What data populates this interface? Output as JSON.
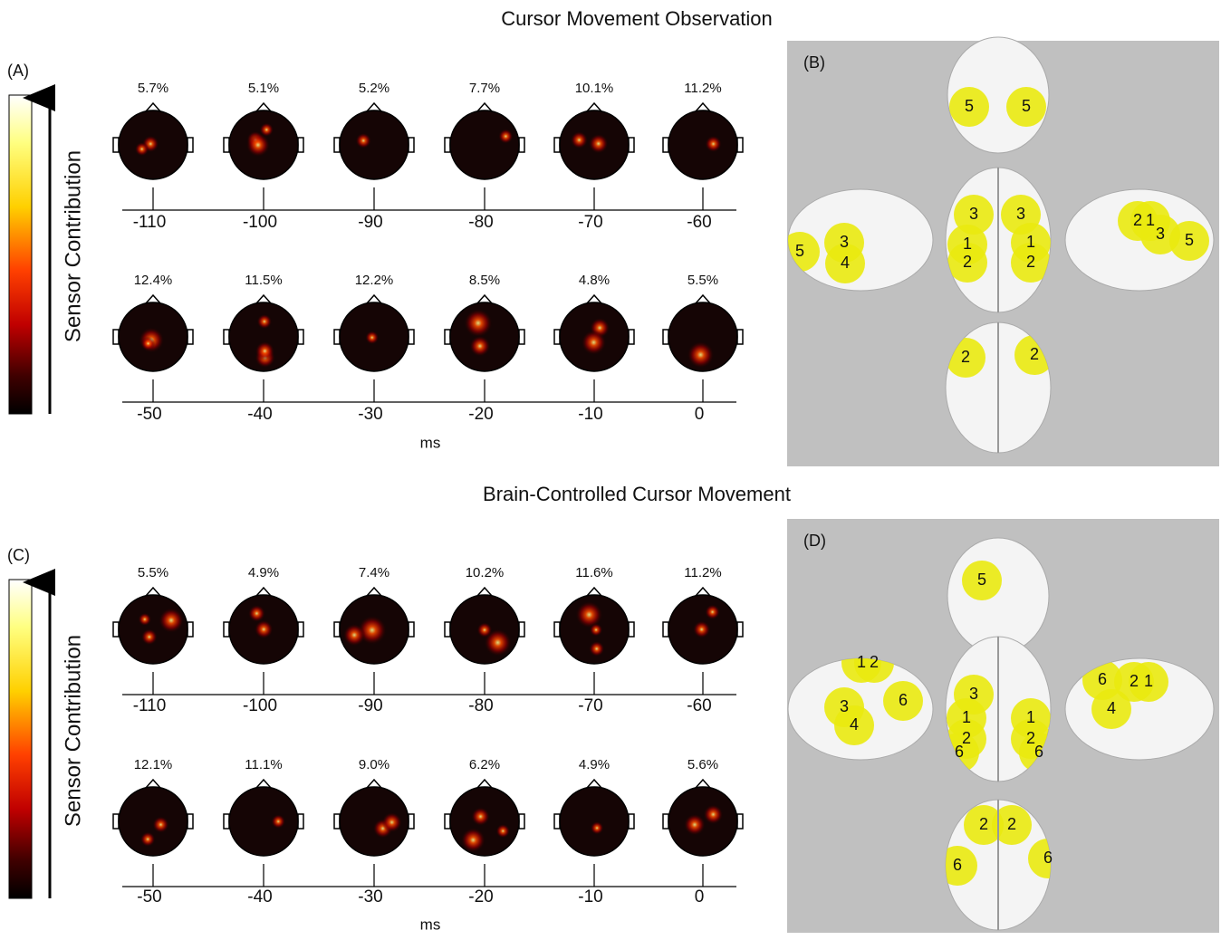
{
  "sections": [
    {
      "title": "Cursor Movement Observation",
      "topo_panel": {
        "label": "(A)",
        "colorbar_label": "Sensor Contribution",
        "axis_label": "ms",
        "rows": [
          {
            "percents": [
              "5.7%",
              "5.1%",
              "5.2%",
              "7.7%",
              "10.1%",
              "11.2%"
            ],
            "times": [
              "-110",
              "-100",
              "-90",
              "-80",
              "-70",
              "-60"
            ]
          },
          {
            "percents": [
              "12.4%",
              "11.5%",
              "12.2%",
              "8.5%",
              "4.8%",
              "5.5%"
            ],
            "times": [
              "-50",
              "-40",
              "-30",
              "-20",
              "-10",
              "0"
            ]
          }
        ]
      },
      "brain_panel": {
        "label": "(B)",
        "views": [
          [
            "5",
            "5"
          ],
          [
            "3",
            "4",
            "5"
          ],
          [
            "3",
            "3",
            "1",
            "1",
            "2",
            "2"
          ],
          [
            "2",
            "1",
            "3",
            "5"
          ],
          [
            "2",
            "2"
          ]
        ]
      }
    },
    {
      "title": "Brain-Controlled Cursor Movement",
      "topo_panel": {
        "label": "(C)",
        "colorbar_label": "Sensor Contribution",
        "axis_label": "ms",
        "rows": [
          {
            "percents": [
              "5.5%",
              "4.9%",
              "7.4%",
              "10.2%",
              "11.6%",
              "11.2%"
            ],
            "times": [
              "-110",
              "-100",
              "-90",
              "-80",
              "-70",
              "-60"
            ]
          },
          {
            "percents": [
              "12.1%",
              "11.1%",
              "9.0%",
              "6.2%",
              "4.9%",
              "5.6%"
            ],
            "times": [
              "-50",
              "-40",
              "-30",
              "-20",
              "-10",
              "0"
            ]
          }
        ]
      },
      "brain_panel": {
        "label": "(D)",
        "views": [
          [
            "5"
          ],
          [
            "1",
            "2",
            "3",
            "6",
            "4"
          ],
          [
            "3",
            "1",
            "2",
            "6",
            "1",
            "2",
            "6"
          ],
          [
            "6",
            "2",
            "1",
            "4"
          ],
          [
            "2",
            "2",
            "6",
            "6"
          ]
        ]
      }
    }
  ]
}
